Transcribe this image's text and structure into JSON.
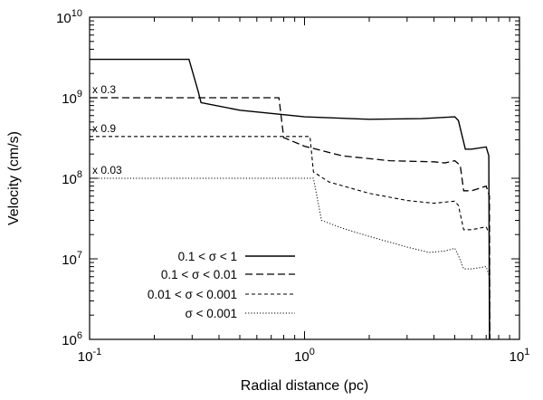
{
  "chart_data": {
    "type": "line",
    "xlabel": "Radial distance (pc)",
    "ylabel": "Velocity (cm/s)",
    "xscale": "log",
    "yscale": "log",
    "xlim": [
      0.1,
      10
    ],
    "ylim": [
      1000000,
      10000000000
    ],
    "grid": false,
    "legend_position": "bottom-left",
    "x_ticks": [
      {
        "value": 0.1,
        "base": "10",
        "exp": "-1"
      },
      {
        "value": 1,
        "base": "10",
        "exp": "0"
      },
      {
        "value": 10,
        "base": "10",
        "exp": "1"
      }
    ],
    "y_ticks": [
      {
        "value": 1000000,
        "base": "10",
        "exp": "6"
      },
      {
        "value": 10000000,
        "base": "10",
        "exp": "7"
      },
      {
        "value": 100000000,
        "base": "10",
        "exp": "8"
      },
      {
        "value": 1000000000,
        "base": "10",
        "exp": "9"
      },
      {
        "value": 10000000000,
        "base": "10",
        "exp": "10"
      }
    ],
    "series": [
      {
        "name": "0.1 < σ < 1",
        "dash": "solid",
        "scale_label": "",
        "points": [
          [
            0.1,
            3000000000.0
          ],
          [
            0.29,
            3000000000.0
          ],
          [
            0.32,
            1200000000.0
          ],
          [
            0.33,
            870000000.0
          ],
          [
            0.5,
            700000000.0
          ],
          [
            1.0,
            580000000.0
          ],
          [
            2.0,
            540000000.0
          ],
          [
            3.5,
            550000000.0
          ],
          [
            5.0,
            580000000.0
          ],
          [
            5.2,
            520000000.0
          ],
          [
            5.6,
            230000000.0
          ],
          [
            6.0,
            230000000.0
          ],
          [
            7.0,
            245000000.0
          ],
          [
            7.2,
            190000000.0
          ],
          [
            7.25,
            1000000.0
          ]
        ]
      },
      {
        "name": "0.1 < σ < 0.01",
        "dash": "long-dash",
        "scale_label": "x 0.3",
        "points": [
          [
            0.1,
            1000000000.0
          ],
          [
            0.76,
            1000000000.0
          ],
          [
            0.8,
            320000000.0
          ],
          [
            1.0,
            250000000.0
          ],
          [
            1.5,
            190000000.0
          ],
          [
            2.5,
            165000000.0
          ],
          [
            4.0,
            160000000.0
          ],
          [
            4.5,
            155000000.0
          ],
          [
            5.0,
            165000000.0
          ],
          [
            5.3,
            145000000.0
          ],
          [
            5.5,
            70000000.0
          ],
          [
            6.0,
            70000000.0
          ],
          [
            7.0,
            80000000.0
          ],
          [
            7.25,
            60000000.0
          ],
          [
            7.28,
            1000000.0
          ]
        ]
      },
      {
        "name": "0.01 < σ < 0.001",
        "dash": "short-dash",
        "scale_label": "x 0.9",
        "points": [
          [
            0.1,
            330000000.0
          ],
          [
            1.06,
            330000000.0
          ],
          [
            1.1,
            120000000.0
          ],
          [
            1.3,
            90000000.0
          ],
          [
            2.0,
            65000000.0
          ],
          [
            3.0,
            53000000.0
          ],
          [
            4.0,
            49000000.0
          ],
          [
            5.0,
            52000000.0
          ],
          [
            5.2,
            46000000.0
          ],
          [
            5.5,
            23000000.0
          ],
          [
            6.0,
            23000000.0
          ],
          [
            7.0,
            25000000.0
          ],
          [
            7.25,
            20000000.0
          ],
          [
            7.28,
            1000000.0
          ]
        ]
      },
      {
        "name": "σ < 0.001",
        "dash": "dotted",
        "scale_label": "x 0.03",
        "points": [
          [
            0.1,
            100000000.0
          ],
          [
            1.1,
            100000000.0
          ],
          [
            1.2,
            30000000.0
          ],
          [
            1.5,
            24000000.0
          ],
          [
            2.0,
            19000000.0
          ],
          [
            3.0,
            14000000.0
          ],
          [
            3.8,
            12000000.0
          ],
          [
            4.5,
            12500000.0
          ],
          [
            5.0,
            13500000.0
          ],
          [
            5.2,
            11000000.0
          ],
          [
            5.5,
            7500000.0
          ],
          [
            6.0,
            7500000.0
          ],
          [
            7.0,
            8000000.0
          ],
          [
            7.25,
            6000000.0
          ],
          [
            7.28,
            1000000.0
          ]
        ]
      }
    ]
  }
}
